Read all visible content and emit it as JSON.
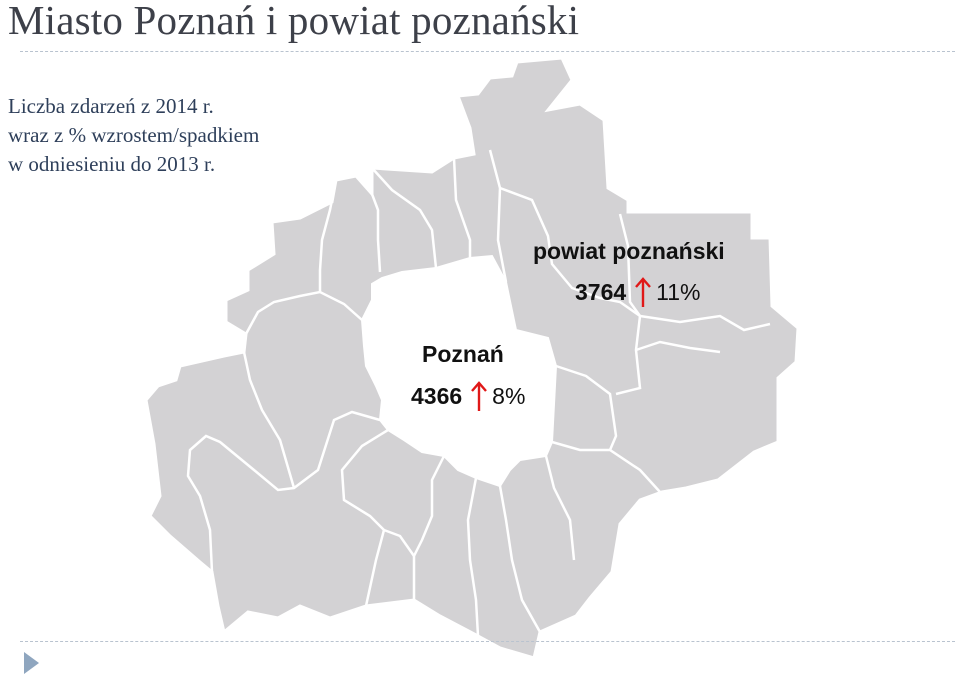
{
  "slide": {
    "title": "Miasto Poznań i powiat poznański",
    "subtitle_lines": [
      "Liczba zdarzeń z 2014 r.",
      "wraz z % wzrostem/spadkiem",
      "w odniesieniu do 2013 r."
    ]
  },
  "map": {
    "fill_color": "#d3d2d4",
    "border_color": "#ffffff",
    "arrow_color": "#e01818",
    "regions": [
      {
        "name": "powiat poznański",
        "count": "3764",
        "change_pct": "11%",
        "change_direction": "up"
      },
      {
        "name": "Poznań",
        "count": "4366",
        "change_pct": "8%",
        "change_direction": "up"
      }
    ]
  },
  "icons": {
    "bullet": "triangle-bullet-icon",
    "arrow": "arrow-up-icon"
  }
}
